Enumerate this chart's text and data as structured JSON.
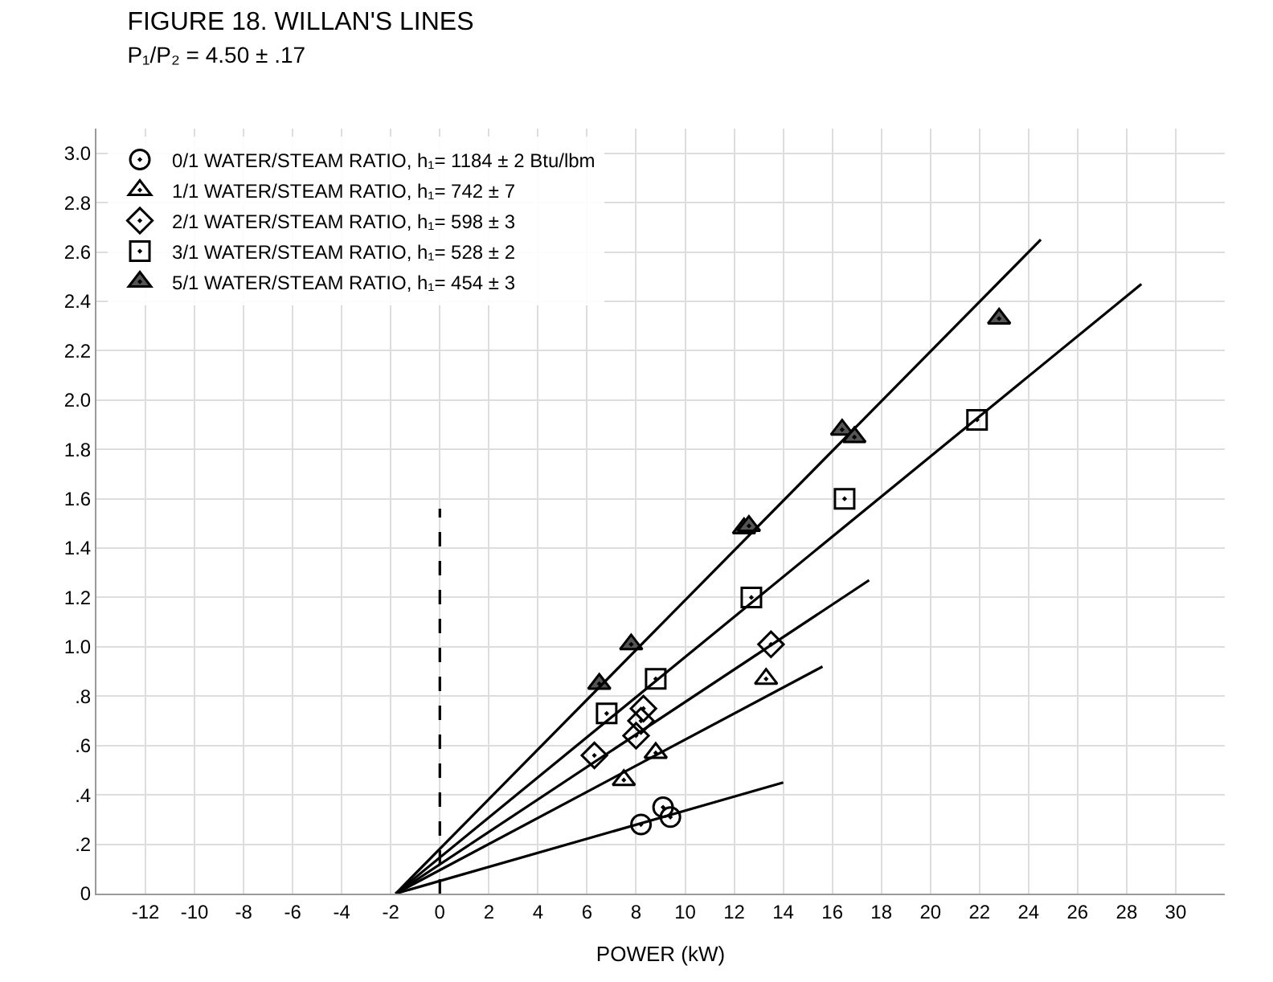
{
  "chart_data": {
    "type": "scatter",
    "title": "FIGURE 18. WILLAN'S LINES",
    "subtitle": "P₁/P₂ = 4.50 ± .17",
    "xlabel": "POWER (kW)",
    "xlim": [
      -14,
      32
    ],
    "xticks": [
      -12,
      -10,
      -8,
      -6,
      -4,
      -2,
      0,
      2,
      4,
      6,
      8,
      10,
      12,
      14,
      16,
      18,
      20,
      22,
      24,
      26,
      28,
      30
    ],
    "ylim": [
      0,
      3.1
    ],
    "yticks": [
      0,
      {
        "value": 0.2,
        "label": ".2"
      },
      {
        "value": 0.4,
        "label": ".4"
      },
      {
        "value": 0.6,
        "label": ".6"
      },
      {
        "value": 0.8,
        "label": ".8"
      },
      {
        "value": 1.0,
        "label": "1.0"
      },
      {
        "value": 1.2,
        "label": "1.2"
      },
      {
        "value": 1.4,
        "label": "1.4"
      },
      {
        "value": 1.6,
        "label": "1.6"
      },
      {
        "value": 1.8,
        "label": "1.8"
      },
      {
        "value": 2.0,
        "label": "2.0"
      },
      {
        "value": 2.2,
        "label": "2.2"
      },
      {
        "value": 2.4,
        "label": "2.4"
      },
      {
        "value": 2.6,
        "label": "2.6"
      },
      {
        "value": 2.8,
        "label": "2.8"
      },
      {
        "value": 3.0,
        "label": "3.0"
      }
    ],
    "grid": true,
    "legend": "top left",
    "series": [
      {
        "name": "0/1 WATER/STEAM RATIO, h₁= 1184 ± 2 Btu/lbm",
        "marker": "circle",
        "color": "#000000",
        "x": [
          8.2,
          9.1,
          9.4
        ],
        "values": [
          0.28,
          0.35,
          0.31
        ]
      },
      {
        "name": "1/1 WATER/STEAM RATIO, h₁= 742 ± 7",
        "marker": "triangle",
        "color": "#000000",
        "x": [
          7.5,
          8.8,
          13.3
        ],
        "values": [
          0.46,
          0.57,
          0.87
        ]
      },
      {
        "name": "2/1 WATER/STEAM RATIO, h₁= 598 ± 3",
        "marker": "diamond",
        "color": "#000000",
        "x": [
          6.3,
          8.0,
          8.2,
          8.3,
          13.5
        ],
        "values": [
          0.56,
          0.64,
          0.7,
          0.75,
          1.01
        ]
      },
      {
        "name": "3/1 WATER/STEAM RATIO, h₁= 528 ± 2",
        "marker": "square",
        "color": "#000000",
        "x": [
          6.8,
          8.8,
          12.7,
          16.5,
          21.9
        ],
        "values": [
          0.73,
          0.87,
          1.2,
          1.6,
          1.92
        ]
      },
      {
        "name": "5/1 WATER/STEAM RATIO, h₁= 454 ± 3",
        "marker": "triangle",
        "color": "#555555",
        "x": [
          6.5,
          7.8,
          12.4,
          12.6,
          16.4,
          16.9,
          22.8
        ],
        "values": [
          0.85,
          1.01,
          1.48,
          1.49,
          1.88,
          1.85,
          2.33
        ]
      },
      {
        "type": "line",
        "marker": "none",
        "color": "#000000",
        "x": [
          -1.8,
          14.0
        ],
        "values": [
          0,
          0.45
        ]
      },
      {
        "type": "line",
        "marker": "none",
        "color": "#000000",
        "x": [
          -1.8,
          15.6
        ],
        "values": [
          0,
          0.92
        ]
      },
      {
        "type": "line",
        "marker": "none",
        "color": "#000000",
        "x": [
          -1.8,
          17.5
        ],
        "values": [
          0,
          1.27
        ]
      },
      {
        "type": "line",
        "marker": "none",
        "color": "#000000",
        "x": [
          -1.8,
          28.6
        ],
        "values": [
          0,
          2.47
        ]
      },
      {
        "type": "line",
        "marker": "none",
        "color": "#000000",
        "x": [
          -1.8,
          24.5
        ],
        "values": [
          0,
          2.65
        ]
      },
      {
        "type": "line",
        "marker": "none",
        "line_style": "dashed",
        "color": "#000000",
        "x": [
          0,
          0
        ],
        "values": [
          0,
          1.56
        ]
      }
    ]
  }
}
